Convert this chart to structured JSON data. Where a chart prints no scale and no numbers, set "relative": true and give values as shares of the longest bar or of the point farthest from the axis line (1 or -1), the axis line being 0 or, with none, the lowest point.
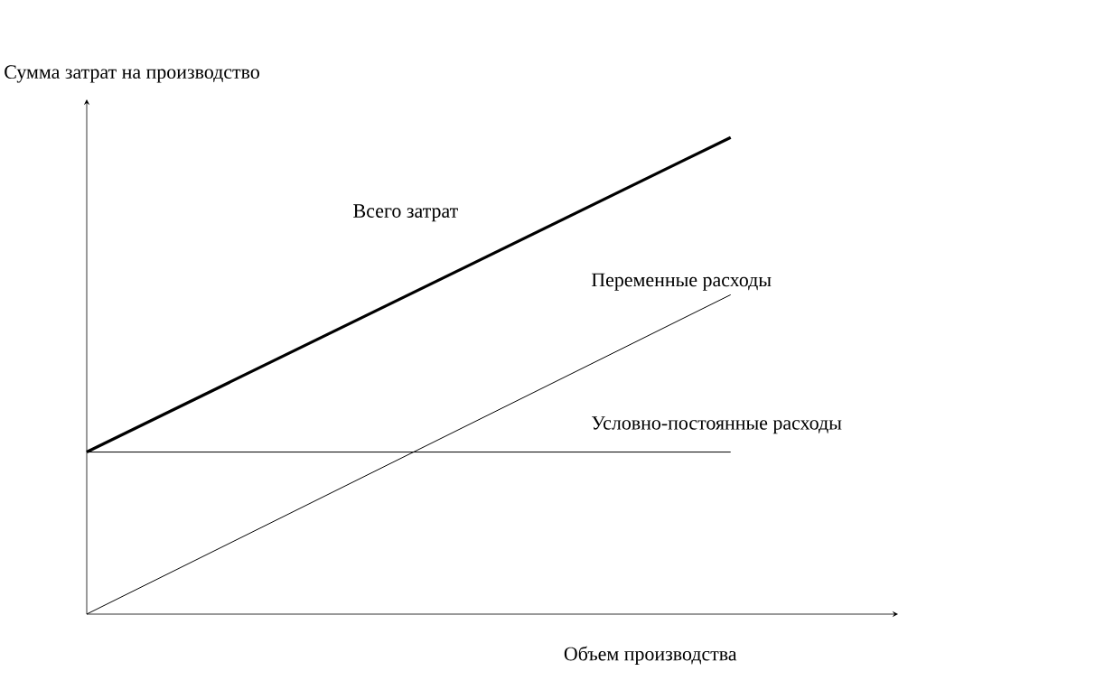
{
  "chart_data": {
    "type": "line",
    "relative": true,
    "xlabel": "Объем производства",
    "ylabel": "Сумма  затрат на производство",
    "categories": [
      null,
      null
    ],
    "marker": "none",
    "line_style": "solid",
    "series": [
      {
        "name": "Всего затрат",
        "color": "#000000",
        "values": [
          0.34,
          1
        ]
      },
      {
        "name": "Переменные  расходы",
        "color": "#000000",
        "values": [
          0,
          0.67
        ]
      },
      {
        "name": "Условно-постоянные расходы",
        "color": "#000000",
        "values": [
          0.34,
          0.34
        ]
      }
    ]
  }
}
